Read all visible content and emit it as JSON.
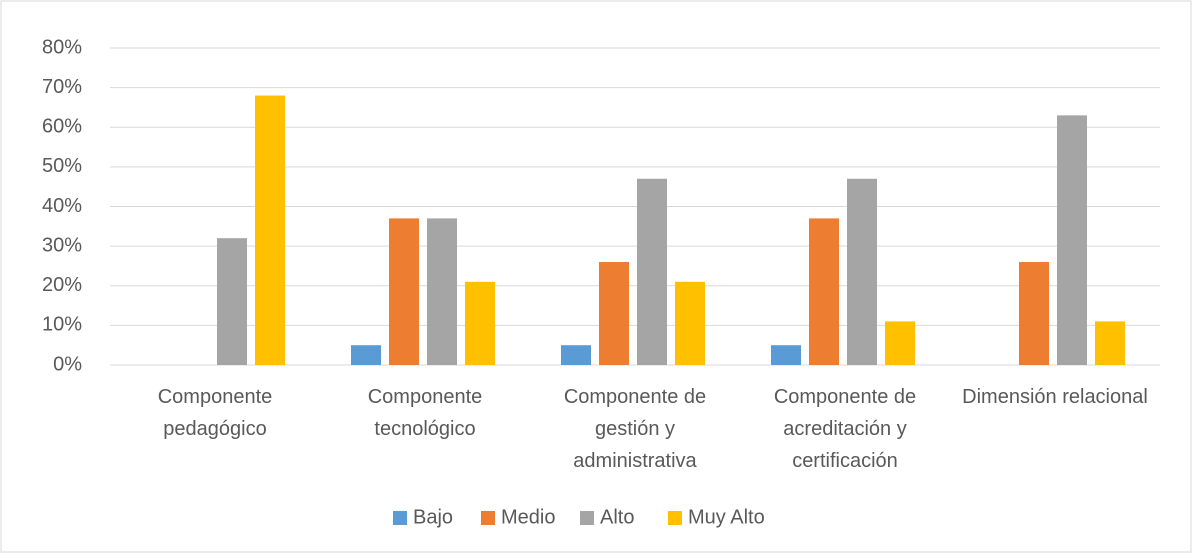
{
  "chart_data": {
    "type": "bar",
    "categories": [
      "Componente pedagógico",
      "Componente tecnológico",
      "Componente de gestión y administrativa",
      "Componente de acreditación y certificación",
      "Dimensión relacional"
    ],
    "series": [
      {
        "name": "Bajo",
        "color": "#5b9bd5",
        "values": [
          0,
          5,
          5,
          5,
          0
        ]
      },
      {
        "name": "Medio",
        "color": "#ed7d31",
        "values": [
          0,
          37,
          26,
          37,
          26
        ]
      },
      {
        "name": "Alto",
        "color": "#a5a5a5",
        "values": [
          32,
          37,
          47,
          47,
          63
        ]
      },
      {
        "name": "Muy Alto",
        "color": "#ffc000",
        "values": [
          68,
          21,
          21,
          11,
          11
        ]
      }
    ],
    "ylim": [
      0,
      80
    ],
    "yticks": [
      {
        "value": 0,
        "label": "0%"
      },
      {
        "value": 10,
        "label": "10%"
      },
      {
        "value": 20,
        "label": "20%"
      },
      {
        "value": 30,
        "label": "30%"
      },
      {
        "value": 40,
        "label": "40%"
      },
      {
        "value": 50,
        "label": "50%"
      },
      {
        "value": 60,
        "label": "60%"
      },
      {
        "value": 70,
        "label": "70%"
      },
      {
        "value": 80,
        "label": "80%"
      }
    ],
    "grid": true,
    "legend": "bottom"
  }
}
